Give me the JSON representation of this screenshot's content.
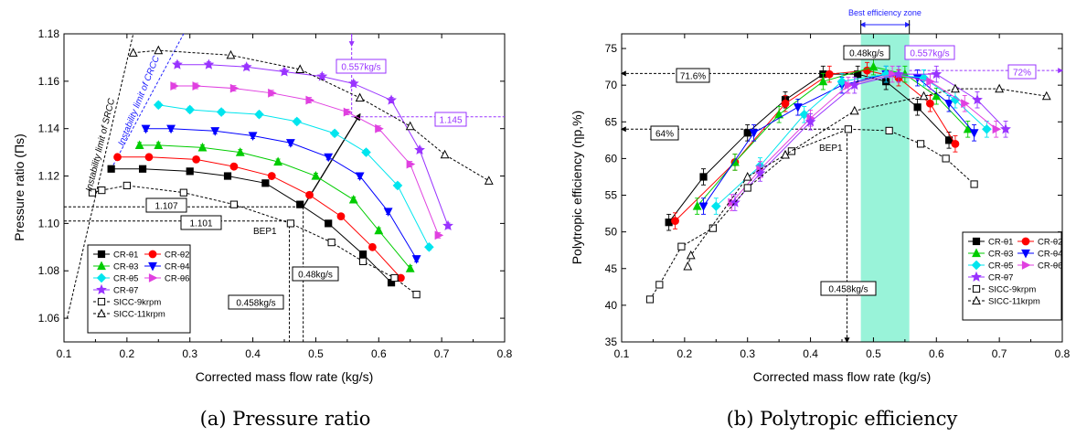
{
  "captions": [
    "(a) Pressure ratio",
    "(b) Polytropic efficiency"
  ],
  "colors": {
    "CR-θ1": "#000000",
    "CR-θ2": "#ff0000",
    "CR-θ3": "#00cc00",
    "CR-θ4": "#0000ff",
    "CR-θ5": "#00e5ee",
    "CR-θ6": "#e040e0",
    "CR-θ7": "#9933ff",
    "annotation_purple": "#9933ff",
    "annotation_blue": "#2222ff",
    "zone_fill": "#7ff0d0"
  },
  "chart_data": [
    {
      "type": "line",
      "xlabel": "Corrected mass flow rate (kg/s)",
      "ylabel": "Pressure ratio (Πs)",
      "xlim": [
        0.1,
        0.8
      ],
      "ylim": [
        1.05,
        1.18
      ],
      "xticks": [
        "0.1",
        "0.2",
        "0.3",
        "0.4",
        "0.5",
        "0.6",
        "0.7",
        "0.8"
      ],
      "yticks": [
        "1.06",
        "1.08",
        "1.10",
        "1.12",
        "1.14",
        "1.16",
        "1.18"
      ],
      "legend_position": "bottom-left",
      "series": [
        {
          "name": "CR-θ1",
          "x": [
            0.175,
            0.225,
            0.3,
            0.36,
            0.42,
            0.475,
            0.52,
            0.575,
            0.62
          ],
          "y": [
            1.123,
            1.123,
            1.122,
            1.12,
            1.117,
            1.108,
            1.1,
            1.087,
            1.075
          ]
        },
        {
          "name": "CR-θ2",
          "x": [
            0.185,
            0.235,
            0.31,
            0.37,
            0.43,
            0.49,
            0.54,
            0.59,
            0.635
          ],
          "y": [
            1.128,
            1.128,
            1.127,
            1.124,
            1.12,
            1.112,
            1.103,
            1.09,
            1.077
          ]
        },
        {
          "name": "CR-θ3",
          "x": [
            0.22,
            0.25,
            0.32,
            0.38,
            0.44,
            0.5,
            0.56,
            0.6,
            0.65
          ],
          "y": [
            1.133,
            1.133,
            1.132,
            1.13,
            1.126,
            1.12,
            1.11,
            1.097,
            1.081
          ]
        },
        {
          "name": "CR-θ4",
          "x": [
            0.23,
            0.27,
            0.34,
            0.4,
            0.46,
            0.52,
            0.57,
            0.615,
            0.66
          ],
          "y": [
            1.14,
            1.14,
            1.139,
            1.137,
            1.134,
            1.128,
            1.12,
            1.105,
            1.085
          ]
        },
        {
          "name": "CR-θ5",
          "x": [
            0.25,
            0.3,
            0.35,
            0.41,
            0.47,
            0.53,
            0.58,
            0.63,
            0.68
          ],
          "y": [
            1.15,
            1.148,
            1.147,
            1.146,
            1.143,
            1.138,
            1.13,
            1.116,
            1.09
          ]
        },
        {
          "name": "CR-θ6",
          "x": [
            0.275,
            0.31,
            0.37,
            0.43,
            0.49,
            0.55,
            0.6,
            0.65,
            0.695
          ],
          "y": [
            1.158,
            1.158,
            1.157,
            1.155,
            1.152,
            1.147,
            1.14,
            1.125,
            1.095
          ]
        },
        {
          "name": "CR-θ7",
          "x": [
            0.28,
            0.33,
            0.39,
            0.45,
            0.51,
            0.56,
            0.62,
            0.665,
            0.71
          ],
          "y": [
            1.167,
            1.167,
            1.166,
            1.164,
            1.162,
            1.159,
            1.152,
            1.131,
            1.099
          ]
        },
        {
          "name": "SICC-9krpm",
          "dashed": true,
          "x": [
            0.145,
            0.16,
            0.2,
            0.29,
            0.37,
            0.46,
            0.525,
            0.575,
            0.625,
            0.66
          ],
          "y": [
            1.113,
            1.114,
            1.116,
            1.113,
            1.108,
            1.1,
            1.092,
            1.084,
            1.077,
            1.07
          ]
        },
        {
          "name": "SICC-11krpm",
          "dashed": true,
          "x": [
            0.21,
            0.25,
            0.365,
            0.475,
            0.57,
            0.65,
            0.705,
            0.775
          ],
          "y": [
            1.172,
            1.173,
            1.171,
            1.165,
            1.153,
            1.141,
            1.129,
            1.118
          ]
        }
      ],
      "annotations": {
        "srcc": "Instability limit of SRCC",
        "crcc": "Instability limit of CRCC",
        "v1107": "1.107",
        "v1101": "1.101",
        "bep": "BEP1",
        "m048": "0.48kg/s",
        "m0458": "0.458kg/s",
        "m0557": "0.557kg/s",
        "v1145": "1.145"
      }
    },
    {
      "type": "line",
      "xlabel": "Corrected mass flow rate (kg/s)",
      "ylabel": "Polytropic efficiency (ηp,%)",
      "xlim": [
        0.1,
        0.8
      ],
      "ylim": [
        35,
        77
      ],
      "xticks": [
        "0.1",
        "0.2",
        "0.3",
        "0.4",
        "0.5",
        "0.6",
        "0.7",
        "0.8"
      ],
      "yticks": [
        "35",
        "40",
        "45",
        "50",
        "55",
        "60",
        "65",
        "70",
        "75"
      ],
      "legend_position": "bottom-right",
      "series": [
        {
          "name": "CR-θ1",
          "x": [
            0.175,
            0.23,
            0.3,
            0.36,
            0.42,
            0.475,
            0.52,
            0.57,
            0.62
          ],
          "y": [
            51.3,
            57.5,
            63.5,
            68,
            71.5,
            71.5,
            70.5,
            67,
            62.5
          ]
        },
        {
          "name": "CR-θ2",
          "x": [
            0.185,
            0.28,
            0.36,
            0.43,
            0.49,
            0.54,
            0.59,
            0.63
          ],
          "y": [
            51.5,
            59.5,
            67.5,
            71.5,
            72,
            71,
            67.5,
            62
          ]
        },
        {
          "name": "CR-θ3",
          "x": [
            0.22,
            0.28,
            0.35,
            0.42,
            0.5,
            0.55,
            0.6,
            0.65
          ],
          "y": [
            53.5,
            59.5,
            66,
            70.5,
            72.5,
            71.5,
            68.5,
            64
          ]
        },
        {
          "name": "CR-θ4",
          "x": [
            0.23,
            0.31,
            0.38,
            0.45,
            0.52,
            0.57,
            0.62,
            0.66
          ],
          "y": [
            53.5,
            63.5,
            67,
            70,
            71.5,
            71,
            67.5,
            63.5
          ]
        },
        {
          "name": "CR-θ5",
          "x": [
            0.25,
            0.32,
            0.39,
            0.45,
            0.52,
            0.58,
            0.63,
            0.68
          ],
          "y": [
            53.5,
            59,
            66,
            70.5,
            71.5,
            71,
            68,
            64
          ]
        },
        {
          "name": "CR-θ6",
          "x": [
            0.275,
            0.32,
            0.4,
            0.46,
            0.53,
            0.59,
            0.645,
            0.695
          ],
          "y": [
            54,
            58.5,
            65.5,
            70,
            71.5,
            70.5,
            67.5,
            64
          ]
        },
        {
          "name": "CR-θ7",
          "x": [
            0.28,
            0.32,
            0.4,
            0.47,
            0.54,
            0.6,
            0.665,
            0.71
          ],
          "y": [
            54,
            58,
            65,
            70,
            71.5,
            71.5,
            68,
            64
          ]
        },
        {
          "name": "SICC-9krpm",
          "dashed": true,
          "x": [
            0.145,
            0.16,
            0.195,
            0.245,
            0.3,
            0.37,
            0.46,
            0.525,
            0.575,
            0.615,
            0.66
          ],
          "y": [
            40.8,
            42.8,
            48,
            50.5,
            56,
            61,
            64,
            63.8,
            62,
            60,
            56.5
          ]
        },
        {
          "name": "SICC-11krpm",
          "dashed": true,
          "x": [
            0.205,
            0.21,
            0.3,
            0.36,
            0.47,
            0.58,
            0.63,
            0.7,
            0.775
          ],
          "y": [
            45.3,
            46.8,
            57.5,
            60.5,
            66.5,
            68.5,
            69.5,
            69.5,
            68.5
          ]
        }
      ],
      "annotations": {
        "zone": "Best efficiency zone",
        "m048": "0.48kg/s",
        "m0557": "0.557kg/s",
        "p716": "71.6%",
        "p72": "72%",
        "p64": "64%",
        "bep": "BEP1",
        "m0458": "0.458kg/s"
      }
    }
  ]
}
